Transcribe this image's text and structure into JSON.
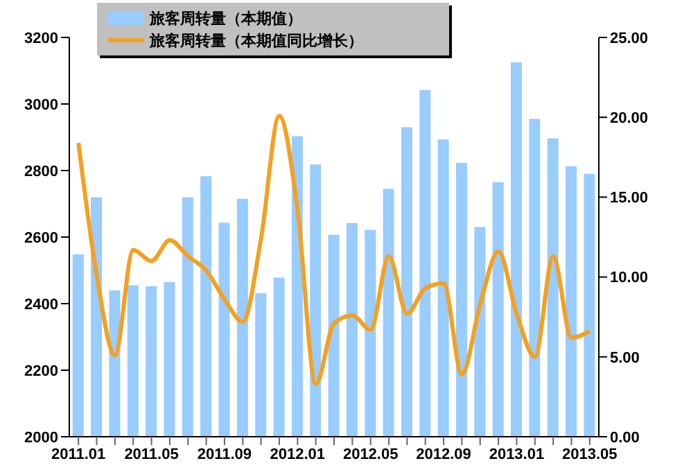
{
  "chart_data": {
    "type": "bar",
    "categories": [
      "2011.01",
      null,
      null,
      null,
      "2011.05",
      null,
      null,
      null,
      "2011.09",
      null,
      null,
      null,
      "2012.01",
      null,
      null,
      null,
      "2012.05",
      null,
      null,
      null,
      "2012.09",
      null,
      null,
      null,
      "2013.01",
      null,
      null,
      null,
      "2013.05"
    ],
    "series": [
      {
        "name": "旅客周转量（本期值）",
        "color": "#99ccff",
        "values": [
          2548,
          2720,
          2440,
          2455,
          2452,
          2465,
          2720,
          2783,
          2643,
          2715,
          2432,
          2478,
          2903,
          2818,
          2607,
          2642,
          2622,
          2745,
          2930,
          3042,
          2893,
          2823,
          2630,
          2765,
          3125,
          2955,
          2897,
          2813,
          2790
        ]
      },
      {
        "name": "旅客周转量（本期值同比增长）",
        "type": "line",
        "axis": "y2",
        "color": "#f4a020",
        "values": [
          18.4,
          10.1,
          5.1,
          11.7,
          11.0,
          12.3,
          11.3,
          10.4,
          8.6,
          7.2,
          12.4,
          20.1,
          14.2,
          3.3,
          7.1,
          7.6,
          6.7,
          11.3,
          7.7,
          9.3,
          9.6,
          3.9,
          8.3,
          11.6,
          7.7,
          5.0,
          11.3,
          6.2,
          6.6
        ]
      }
    ],
    "ylim": [
      2000,
      3200
    ],
    "yticks": [
      2000,
      2200,
      2400,
      2600,
      2800,
      3000,
      3200
    ],
    "y2lim": [
      0,
      25
    ],
    "y2ticks": [
      {
        "value": 0,
        "label": "0.00"
      },
      {
        "value": 5,
        "label": "5.00"
      },
      {
        "value": 10,
        "label": "10.00"
      },
      {
        "value": 15,
        "label": "15.00"
      },
      {
        "value": 20,
        "label": "20.00"
      },
      {
        "value": 25,
        "label": "25.00"
      }
    ],
    "legend": "top",
    "grid": false,
    "marker": "none",
    "line_style": "solid"
  }
}
